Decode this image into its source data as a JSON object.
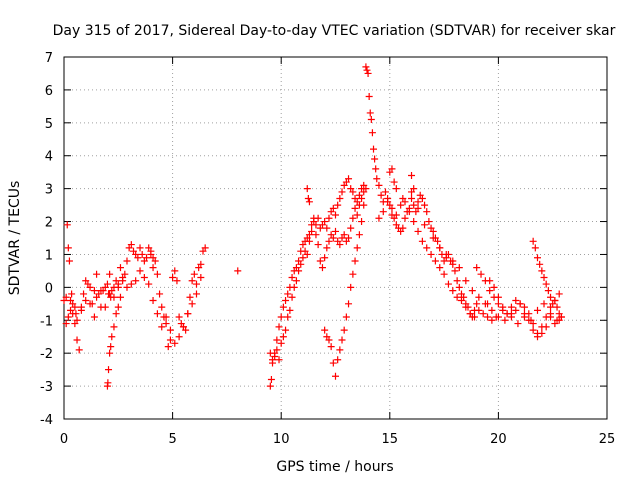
{
  "chart_data": {
    "type": "scatter",
    "title": "Day 315 of 2017, Sidereal Day-to-day VTEC variation (SDTVAR) for receiver skar",
    "xlabel": "GPS time / hours",
    "ylabel": "SDTVAR / TECUs",
    "xlim": [
      0,
      25
    ],
    "ylim": [
      -4,
      7
    ],
    "xticks": [
      "0",
      "5",
      "10",
      "15",
      "20",
      "25"
    ],
    "yticks": [
      "-4",
      "-3",
      "-2",
      "-1",
      "0",
      "1",
      "2",
      "3",
      "4",
      "5",
      "6",
      "7"
    ],
    "grid": true,
    "marker": "+",
    "color": "#ff0000",
    "series": [
      {
        "name": "SDTVAR",
        "x": [
          0.0,
          0.1,
          0.15,
          0.2,
          0.25,
          0.3,
          0.35,
          0.4,
          0.5,
          0.55,
          0.6,
          0.7,
          0.8,
          0.9,
          1.0,
          1.1,
          1.2,
          1.3,
          1.4,
          1.5,
          1.6,
          1.7,
          1.8,
          1.9,
          2.0,
          2.05,
          2.1,
          2.15,
          2.2,
          2.3,
          2.4,
          2.5,
          2.6,
          2.7,
          2.8,
          2.9,
          3.0,
          3.1,
          3.2,
          3.3,
          3.4,
          3.5,
          3.6,
          3.7,
          3.8,
          3.9,
          4.0,
          4.1,
          4.2,
          4.3,
          4.4,
          4.5,
          4.6,
          4.7,
          4.8,
          4.9,
          5.0,
          5.1,
          5.2,
          5.3,
          5.4,
          5.5,
          5.6,
          5.7,
          5.8,
          5.9,
          6.0,
          6.1,
          6.2,
          6.3,
          6.4,
          6.5,
          0.1,
          0.2,
          0.3,
          0.4,
          0.5,
          0.6,
          0.8,
          1.0,
          1.2,
          1.4,
          1.5,
          1.7,
          1.9,
          2.1,
          2.3,
          2.5,
          2.7,
          2.9,
          3.1,
          3.3,
          3.5,
          3.7,
          3.9,
          4.1,
          4.3,
          4.5,
          4.7,
          4.9,
          5.1,
          5.3,
          5.5,
          5.7,
          5.9,
          6.1,
          6.3,
          2.0,
          2.02,
          2.05,
          2.1,
          2.15,
          2.2,
          2.3,
          2.4,
          2.5,
          2.6,
          9.5,
          9.55,
          9.6,
          9.7,
          9.8,
          9.9,
          10.0,
          10.1,
          10.2,
          10.3,
          10.4,
          10.5,
          10.6,
          10.7,
          10.8,
          10.9,
          11.0,
          11.1,
          11.2,
          11.3,
          11.4,
          11.5,
          11.6,
          11.7,
          11.8,
          11.9,
          12.0,
          12.1,
          12.2,
          12.3,
          12.4,
          12.5,
          12.6,
          12.7,
          12.8,
          12.9,
          13.0,
          13.1,
          13.2,
          13.3,
          13.4,
          13.5,
          13.6,
          13.7,
          13.8,
          9.5,
          9.6,
          9.7,
          9.8,
          9.9,
          10.0,
          10.1,
          10.2,
          10.3,
          10.4,
          10.5,
          10.6,
          10.7,
          10.8,
          10.9,
          11.0,
          11.1,
          11.2,
          11.3,
          11.4,
          11.5,
          11.6,
          11.7,
          11.8,
          11.9,
          12.0,
          12.1,
          12.2,
          12.3,
          12.4,
          12.5,
          12.6,
          12.7,
          12.8,
          12.9,
          13.0,
          13.1,
          13.2,
          13.3,
          13.4,
          13.5,
          13.6,
          13.7,
          13.8,
          13.9,
          12.0,
          12.1,
          12.2,
          12.3,
          12.4,
          12.5,
          12.6,
          12.7,
          12.8,
          12.9,
          13.0,
          13.1,
          13.2,
          13.3,
          13.4,
          13.5,
          13.6,
          13.7,
          13.8,
          13.9,
          13.95,
          14.0,
          14.05,
          14.1,
          14.15,
          14.2,
          14.25,
          14.3,
          14.35,
          14.4,
          14.5,
          14.6,
          14.7,
          14.8,
          14.9,
          15.0,
          15.1,
          15.2,
          15.3,
          15.4,
          15.5,
          15.6,
          15.7,
          15.8,
          15.9,
          16.0,
          16.1,
          16.2,
          16.3,
          16.4,
          16.5,
          16.6,
          16.7,
          16.8,
          16.9,
          17.0,
          17.1,
          17.2,
          17.3,
          17.4,
          17.5,
          17.6,
          17.7,
          17.8,
          17.9,
          18.0,
          18.1,
          18.2,
          18.3,
          18.4,
          18.5,
          18.6,
          18.7,
          18.8,
          18.9,
          19.0,
          14.5,
          14.7,
          14.9,
          15.1,
          15.3,
          15.5,
          15.7,
          15.9,
          16.1,
          16.3,
          16.5,
          16.7,
          16.9,
          17.1,
          17.3,
          17.5,
          17.7,
          17.9,
          18.1,
          18.3,
          18.5,
          18.7,
          18.9,
          19.1,
          19.3,
          19.5,
          19.7,
          19.9,
          15.0,
          15.3,
          15.6,
          16.0,
          16.3,
          16.6,
          17.0,
          17.3,
          17.6,
          17.9,
          18.2,
          18.5,
          18.8,
          19.1,
          19.4,
          19.7,
          20.0,
          20.3,
          20.6,
          20.9,
          21.2,
          21.5,
          21.8,
          22.1,
          22.4,
          22.7,
          22.9,
          19.0,
          19.2,
          19.4,
          19.6,
          19.8,
          20.0,
          20.2,
          20.4,
          20.6,
          20.8,
          21.0,
          21.2,
          21.4,
          21.6,
          21.8,
          22.0,
          22.2,
          22.4,
          22.6,
          22.8,
          19.5,
          19.6,
          19.8,
          20.0,
          20.2,
          20.4,
          20.6,
          20.8,
          21.0,
          21.2,
          21.4,
          21.6,
          21.8,
          22.0,
          22.2,
          22.4,
          22.6,
          22.8,
          21.6,
          21.7,
          21.8,
          21.9,
          22.0,
          22.1,
          22.2,
          22.3,
          22.4,
          22.5,
          22.6,
          22.7,
          22.8,
          22.9,
          11.2,
          11.25,
          11.3,
          15.1,
          15.2,
          16.0,
          16.1,
          4.0,
          4.1,
          8.0
        ],
        "y": [
          -0.4,
          -0.3,
          1.9,
          1.2,
          0.8,
          -0.4,
          -0.2,
          -0.5,
          -1.1,
          -0.8,
          -1.6,
          -1.9,
          -0.6,
          -0.2,
          0.2,
          0.1,
          0.0,
          -0.5,
          -0.1,
          0.4,
          -0.2,
          -0.6,
          -0.1,
          0.0,
          0.1,
          -0.2,
          0.4,
          -0.3,
          -0.1,
          0.0,
          0.2,
          0.1,
          0.6,
          0.2,
          0.4,
          0.8,
          1.2,
          1.3,
          1.1,
          1.0,
          0.9,
          1.2,
          1.0,
          0.8,
          0.9,
          1.2,
          1.1,
          0.6,
          0.8,
          0.4,
          -0.2,
          -0.6,
          -0.9,
          -1.1,
          -1.8,
          -1.6,
          0.3,
          0.5,
          0.2,
          -0.9,
          -1.1,
          -1.2,
          -1.3,
          -0.8,
          -0.3,
          0.2,
          0.4,
          0.1,
          0.6,
          0.7,
          1.1,
          1.2,
          -1.1,
          -0.9,
          -0.7,
          -0.8,
          -0.6,
          -1.0,
          -0.7,
          -0.4,
          -0.5,
          -0.9,
          -0.3,
          -0.1,
          -0.6,
          -0.2,
          -0.3,
          0.0,
          0.3,
          0.0,
          0.1,
          0.2,
          0.5,
          0.3,
          0.1,
          -0.4,
          -0.8,
          -1.2,
          -0.9,
          -1.3,
          -1.7,
          -1.5,
          -1.2,
          -0.8,
          -0.5,
          -0.2,
          0.3,
          -3.0,
          -2.9,
          -2.5,
          -2.0,
          -1.8,
          -1.5,
          -1.2,
          -0.8,
          -0.6,
          -0.3,
          -3.0,
          -2.8,
          -2.3,
          -2.0,
          -1.6,
          -1.2,
          -0.9,
          -0.6,
          -0.4,
          -0.2,
          0.0,
          0.3,
          0.5,
          0.6,
          0.8,
          1.1,
          1.3,
          1.4,
          1.5,
          1.6,
          1.9,
          2.0,
          1.9,
          2.1,
          1.8,
          1.9,
          2.0,
          1.8,
          2.1,
          2.3,
          2.4,
          2.2,
          2.5,
          2.7,
          2.9,
          3.1,
          3.2,
          3.3,
          3.0,
          2.9,
          2.7,
          2.6,
          2.8,
          3.0,
          3.1,
          -2.0,
          -2.2,
          -2.1,
          -1.9,
          -2.2,
          -1.7,
          -1.5,
          -1.3,
          -0.9,
          -0.7,
          -0.3,
          0.0,
          0.2,
          0.5,
          0.7,
          0.9,
          1.1,
          1.0,
          1.4,
          1.7,
          2.1,
          1.6,
          1.3,
          0.8,
          0.6,
          0.9,
          1.2,
          1.4,
          1.6,
          1.5,
          1.7,
          1.4,
          1.3,
          1.5,
          1.6,
          1.4,
          1.5,
          1.8,
          2.1,
          2.4,
          2.2,
          2.5,
          2.7,
          2.9,
          3.0,
          -1.3,
          -1.5,
          -1.6,
          -1.8,
          -2.3,
          -2.7,
          -2.2,
          -1.9,
          -1.6,
          -1.3,
          -0.9,
          -0.5,
          0.0,
          0.4,
          0.8,
          1.2,
          1.6,
          2.0,
          2.5,
          6.7,
          6.6,
          6.5,
          5.8,
          5.3,
          5.1,
          4.7,
          4.2,
          3.9,
          3.6,
          3.3,
          3.1,
          2.8,
          2.6,
          2.9,
          2.7,
          2.5,
          2.2,
          2.1,
          1.9,
          1.8,
          1.7,
          1.8,
          2.1,
          2.3,
          2.4,
          2.7,
          2.5,
          2.3,
          2.6,
          2.8,
          2.7,
          2.5,
          2.3,
          2.0,
          1.8,
          1.7,
          1.5,
          1.4,
          1.2,
          1.0,
          0.8,
          0.9,
          1.0,
          0.8,
          0.7,
          0.5,
          0.2,
          0.0,
          -0.2,
          -0.3,
          -0.5,
          -0.6,
          -0.8,
          -0.9,
          -0.7,
          -0.5,
          2.1,
          2.3,
          2.6,
          2.4,
          2.2,
          2.5,
          2.6,
          2.3,
          2.0,
          1.7,
          1.4,
          1.2,
          1.0,
          0.8,
          0.6,
          0.4,
          0.1,
          -0.1,
          -0.3,
          -0.4,
          -0.6,
          -0.8,
          -0.9,
          -0.7,
          -0.8,
          -0.9,
          -1.0,
          -0.9,
          3.5,
          3.0,
          2.7,
          2.9,
          2.4,
          1.9,
          1.5,
          1.2,
          1.0,
          0.8,
          0.6,
          0.2,
          -0.1,
          -0.3,
          -0.5,
          -0.7,
          -0.9,
          -1.0,
          -0.8,
          -1.1,
          -0.9,
          -1.0,
          -0.7,
          -0.5,
          -0.8,
          -1.0,
          -0.9,
          0.6,
          0.4,
          0.2,
          -0.1,
          -0.3,
          -0.5,
          -0.7,
          -0.8,
          -0.6,
          -0.4,
          -0.5,
          -0.6,
          -0.8,
          -1.1,
          -1.4,
          -1.2,
          -0.9,
          -0.6,
          -0.4,
          -0.2,
          -0.5,
          0.2,
          0.0,
          -0.3,
          -0.6,
          -0.8,
          -0.9,
          -0.7,
          -0.5,
          -0.8,
          -1.0,
          -1.3,
          -1.5,
          -1.4,
          -1.2,
          -0.9,
          -1.1,
          -1.0,
          1.4,
          1.2,
          0.9,
          0.7,
          0.5,
          0.3,
          0.1,
          -0.1,
          -0.3,
          -0.5,
          -0.4,
          -0.6,
          -0.8,
          -0.9,
          3.0,
          2.7,
          2.6,
          3.6,
          3.2,
          3.4,
          3.0,
          1.0,
          0.9,
          0.5
        ]
      }
    ]
  }
}
